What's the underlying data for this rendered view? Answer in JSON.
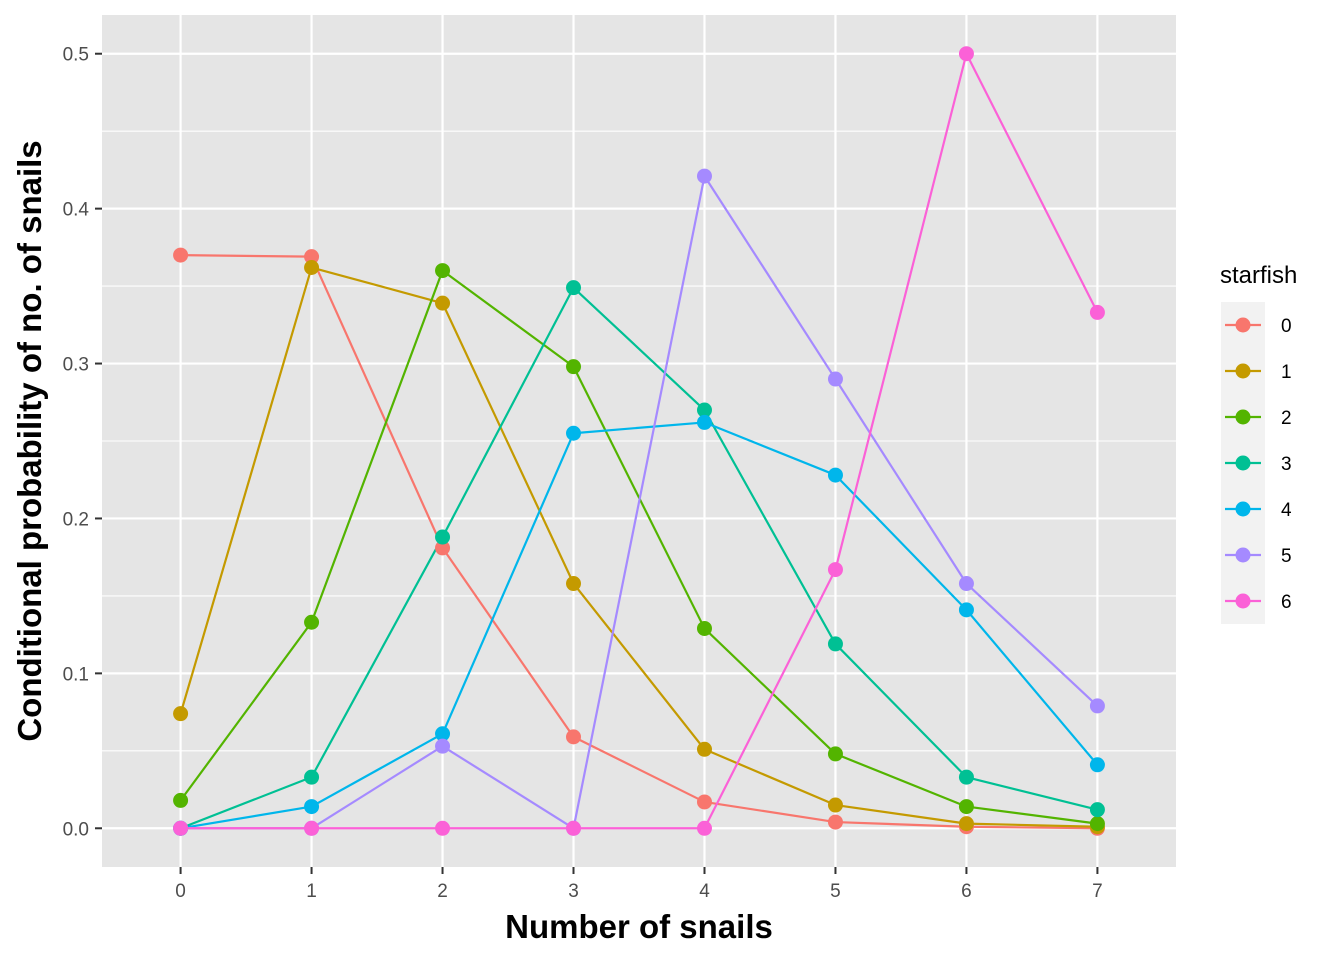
{
  "chart_data": {
    "type": "line",
    "title": "",
    "xlabel": "Number of snails",
    "ylabel": "Conditional probability of no. of snails",
    "x": [
      0,
      1,
      2,
      3,
      4,
      5,
      6,
      7
    ],
    "x_ticks": [
      "0",
      "1",
      "2",
      "3",
      "4",
      "5",
      "6",
      "7"
    ],
    "y_ticks": [
      "0.0",
      "0.1",
      "0.2",
      "0.3",
      "0.4",
      "0.5"
    ],
    "xlim": [
      -0.6,
      7.6
    ],
    "ylim": [
      -0.025,
      0.525
    ],
    "grid": true,
    "legend": {
      "title": "starfish",
      "position": "right"
    },
    "series": [
      {
        "name": "0",
        "color": "#F8766D",
        "values": [
          0.37,
          0.369,
          0.181,
          0.059,
          0.017,
          0.004,
          0.001,
          0.0
        ]
      },
      {
        "name": "1",
        "color": "#C49A00",
        "values": [
          0.074,
          0.362,
          0.339,
          0.158,
          0.051,
          0.015,
          0.003,
          0.001
        ]
      },
      {
        "name": "2",
        "color": "#53B400",
        "values": [
          0.018,
          0.133,
          0.36,
          0.298,
          0.129,
          0.048,
          0.014,
          0.003
        ]
      },
      {
        "name": "3",
        "color": "#00C094",
        "values": [
          0.0,
          0.033,
          0.188,
          0.349,
          0.27,
          0.119,
          0.033,
          0.012
        ]
      },
      {
        "name": "4",
        "color": "#00B6EB",
        "values": [
          0.0,
          0.014,
          0.061,
          0.255,
          0.262,
          0.228,
          0.141,
          0.041
        ]
      },
      {
        "name": "5",
        "color": "#A58AFF",
        "values": [
          0.0,
          0.0,
          0.053,
          0.0,
          0.421,
          0.29,
          0.158,
          0.079
        ]
      },
      {
        "name": "6",
        "color": "#FB61D7",
        "values": [
          0.0,
          0.0,
          0.0,
          0.0,
          0.0,
          0.167,
          0.5,
          0.333
        ]
      }
    ]
  }
}
